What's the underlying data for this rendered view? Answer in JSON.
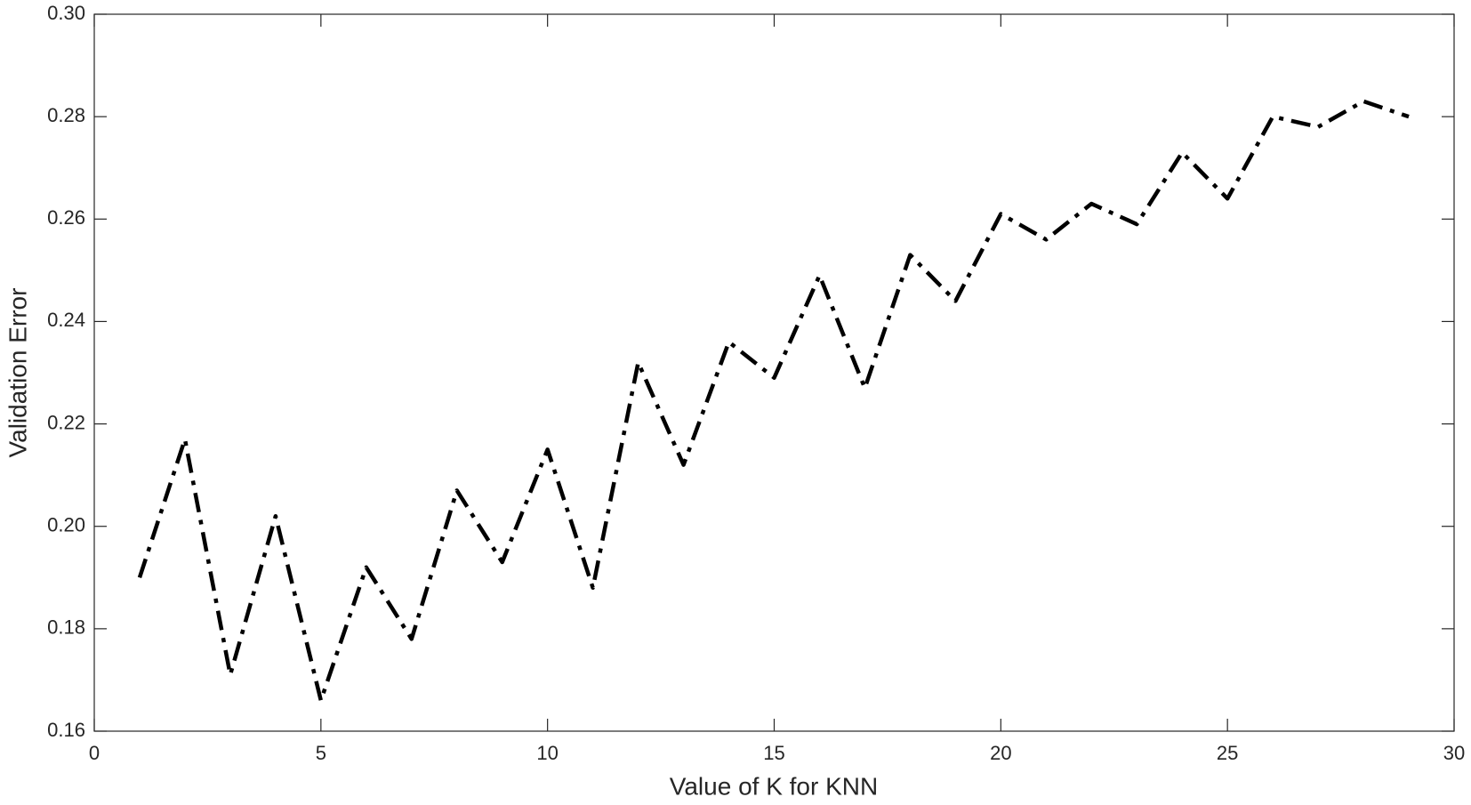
{
  "chart_data": {
    "type": "line",
    "xlabel": "Value of K for KNN",
    "ylabel": "Validation Error",
    "x": [
      1,
      2,
      3,
      4,
      5,
      6,
      7,
      8,
      9,
      10,
      11,
      12,
      13,
      14,
      15,
      16,
      17,
      18,
      19,
      20,
      21,
      22,
      23,
      24,
      25,
      26,
      27,
      28,
      29
    ],
    "series": [
      {
        "color": "#000000",
        "values": [
          0.19,
          0.217,
          0.171,
          0.202,
          0.166,
          0.192,
          0.178,
          0.207,
          0.193,
          0.215,
          0.188,
          0.232,
          0.212,
          0.236,
          0.229,
          0.249,
          0.227,
          0.253,
          0.244,
          0.261,
          0.256,
          0.263,
          0.259,
          0.273,
          0.264,
          0.28,
          0.278,
          0.283,
          0.28
        ]
      }
    ],
    "xlim": [
      0,
      30
    ],
    "xticks": [
      0,
      5,
      10,
      15,
      20,
      25,
      30
    ],
    "ylim": [
      0.16,
      0.3
    ],
    "yticks": [
      {
        "value": 0.16,
        "label": "0.16"
      },
      {
        "value": 0.18,
        "label": "0.18"
      },
      {
        "value": 0.2,
        "label": "0.20"
      },
      {
        "value": 0.22,
        "label": "0.22"
      },
      {
        "value": 0.24,
        "label": "0.24"
      },
      {
        "value": 0.26,
        "label": "0.26"
      },
      {
        "value": 0.28,
        "label": "0.28"
      },
      {
        "value": 0.3,
        "label": "0.30"
      }
    ],
    "grid": false
  }
}
